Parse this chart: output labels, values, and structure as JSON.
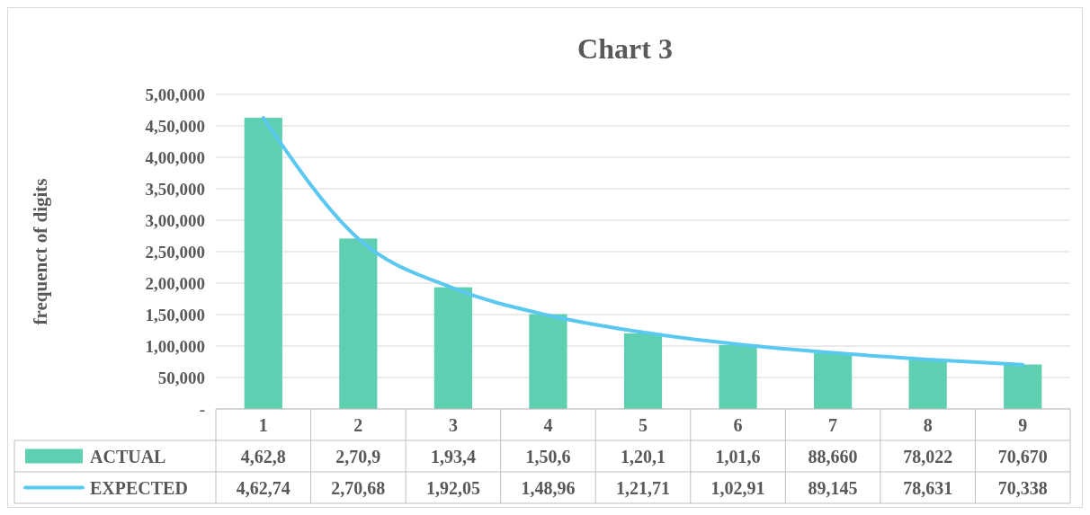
{
  "chart_data": {
    "type": "bar",
    "title": "Chart 3",
    "ylabel": "frequenct of digits",
    "categories": [
      "1",
      "2",
      "3",
      "4",
      "5",
      "6",
      "7",
      "8",
      "9"
    ],
    "series": [
      {
        "name": "ACTUAL",
        "color": "#5ecfb1",
        "values": [
          462800,
          270900,
          193400,
          150600,
          120100,
          101600,
          88660,
          78022,
          70670
        ],
        "value_labels": [
          "4,62,8",
          "2,70,9",
          "1,93,4",
          "1,50,6",
          "1,20,1",
          "1,01,6",
          "88,660",
          "78,022",
          "70,670"
        ]
      },
      {
        "name": "EXPECTED",
        "type": "line",
        "color": "#5bc8f0",
        "values": [
          462740,
          270680,
          192050,
          148960,
          121710,
          102910,
          89145,
          78631,
          70338
        ],
        "value_labels": [
          "4,62,74",
          "2,70,68",
          "1,92,05",
          "1,48,96",
          "1,21,71",
          "1,02,91",
          "89,145",
          "78,631",
          "70,338"
        ]
      }
    ],
    "ylim": [
      0,
      500000
    ],
    "yticks": [
      {
        "value": 0,
        "label": "-"
      },
      {
        "value": 50000,
        "label": "50,000"
      },
      {
        "value": 100000,
        "label": "1,00,000"
      },
      {
        "value": 150000,
        "label": "1,50,000"
      },
      {
        "value": 200000,
        "label": "2,00,000"
      },
      {
        "value": 250000,
        "label": "2,50,000"
      },
      {
        "value": 300000,
        "label": "3,00,000"
      },
      {
        "value": 350000,
        "label": "3,50,000"
      },
      {
        "value": 400000,
        "label": "4,00,000"
      },
      {
        "value": 450000,
        "label": "4,50,000"
      },
      {
        "value": 500000,
        "label": "5,00,000"
      }
    ],
    "grid": "y",
    "legend": "bottom"
  }
}
